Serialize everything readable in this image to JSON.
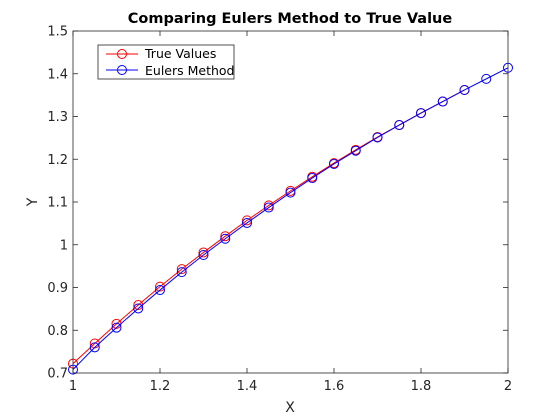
{
  "chart_data": {
    "type": "line",
    "title": "Comparing Eulers Method to True Value",
    "xlabel": "X",
    "ylabel": "Y",
    "xlim": [
      1,
      2
    ],
    "ylim": [
      0.7,
      1.5
    ],
    "xticks": [
      1,
      1.2,
      1.4,
      1.6,
      1.8,
      2
    ],
    "xtick_labels": [
      "1",
      "1.2",
      "1.4",
      "1.6",
      "1.8",
      "2"
    ],
    "yticks": [
      0.7,
      0.8,
      0.9,
      1.0,
      1.1,
      1.2,
      1.3,
      1.4,
      1.5
    ],
    "ytick_labels": [
      "0.7",
      "0.8",
      "0.9",
      "1",
      "1.1",
      "1.2",
      "1.3",
      "1.4",
      "1.5"
    ],
    "grid": false,
    "legend_position": "top-left",
    "x": [
      1,
      1.05,
      1.1,
      1.15,
      1.2,
      1.25,
      1.3,
      1.35,
      1.4,
      1.45,
      1.5,
      1.55,
      1.6,
      1.65,
      1.7,
      1.75,
      1.8,
      1.85,
      1.9,
      1.95,
      2
    ],
    "series": [
      {
        "name": "True Values",
        "color": "#ff0000",
        "marker": "circle",
        "values": [
          0.722,
          0.769,
          0.815,
          0.859,
          0.902,
          0.943,
          0.982,
          1.02,
          1.057,
          1.092,
          1.126,
          1.159,
          1.191,
          1.222,
          1.252,
          1.28,
          1.308,
          1.335,
          1.362,
          null,
          null
        ]
      },
      {
        "name": "Eulers Method",
        "color": "#0000ff",
        "marker": "circle",
        "values": [
          0.708,
          0.76,
          0.806,
          0.851,
          0.894,
          0.936,
          0.976,
          1.014,
          1.051,
          1.087,
          1.122,
          1.156,
          1.189,
          1.22,
          1.251,
          1.28,
          1.308,
          1.335,
          1.362,
          1.388,
          1.414
        ]
      }
    ]
  }
}
